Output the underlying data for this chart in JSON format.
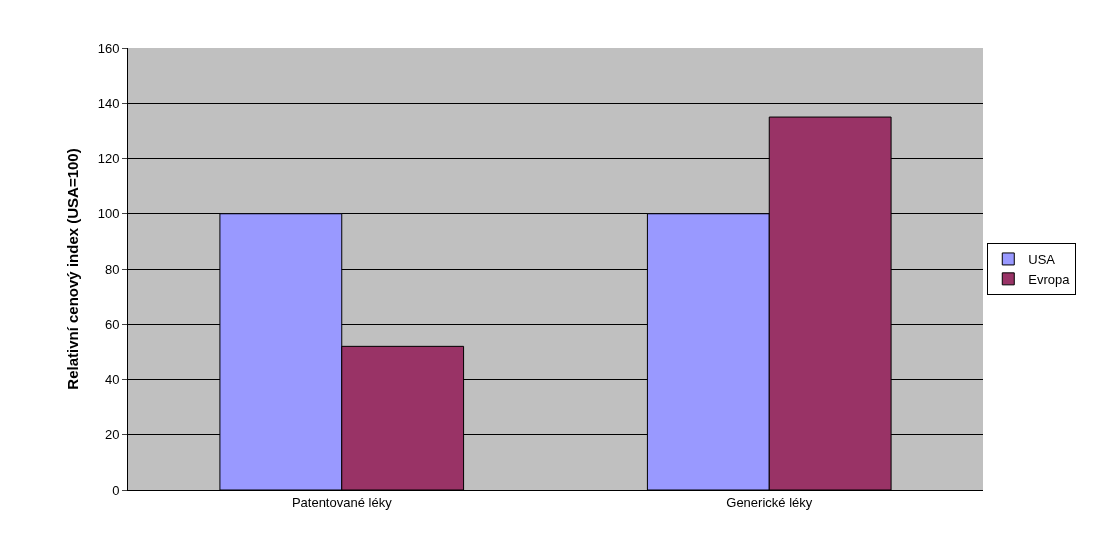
{
  "chart_data": {
    "type": "bar",
    "ylabel": "Relativní cenový index (USA=100)",
    "categories": [
      "Patentované léky",
      "Generické léky"
    ],
    "series": [
      {
        "name": "USA",
        "color": "#9999ff",
        "values": [
          100,
          100
        ]
      },
      {
        "name": "Evropa",
        "color": "#993366",
        "values": [
          52,
          135
        ]
      }
    ],
    "ylim": [
      0,
      160
    ],
    "yticks": [
      0,
      20,
      40,
      60,
      80,
      100,
      120,
      140,
      160
    ],
    "grid": "y",
    "legend": "right"
  }
}
